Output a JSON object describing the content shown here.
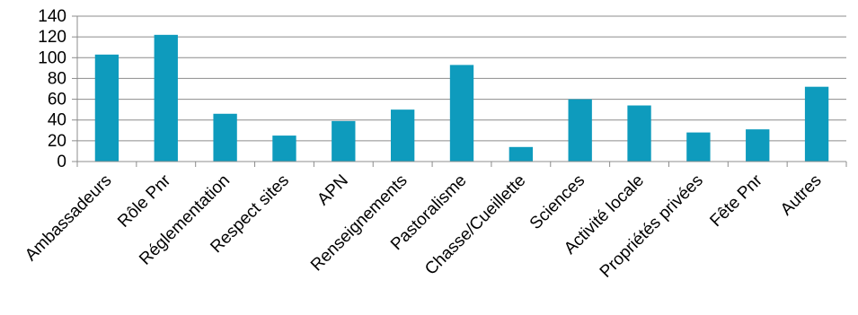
{
  "chart_data": {
    "type": "bar",
    "title": "",
    "xlabel": "",
    "ylabel": "",
    "categories": [
      "Ambassadeurs",
      "Rôle Pnr",
      "Réglementation",
      "Respect sites",
      "APN",
      "Renseignements",
      "Pastoralisme",
      "Chasse/Cueillette",
      "Sciences",
      "Activité locale",
      "Propriétés privées",
      "Fête Pnr",
      "Autres"
    ],
    "series": [
      {
        "values": [
          103,
          122,
          46,
          25,
          39,
          50,
          93,
          14,
          60,
          54,
          28,
          31,
          72
        ]
      }
    ],
    "ylim": [
      0,
      140
    ],
    "yticks": [
      0,
      20,
      40,
      60,
      80,
      100,
      120,
      140
    ],
    "grid": true,
    "legend": "none",
    "colors": {
      "bar": "#0e9bbd"
    }
  }
}
